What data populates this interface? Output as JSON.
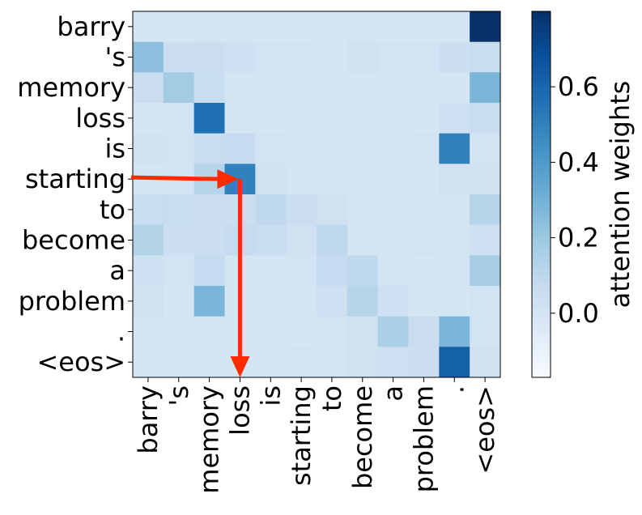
{
  "chart_data": {
    "type": "heatmap",
    "title": "",
    "row_labels": [
      "barry",
      "'s",
      "memory",
      "loss",
      "is",
      "starting",
      "to",
      "become",
      "a",
      "problem",
      ".",
      "<eos>"
    ],
    "col_labels": [
      "barry",
      "'s",
      "memory",
      "loss",
      "is",
      "starting",
      "to",
      "become",
      "a",
      "problem",
      ".",
      "<eos>"
    ],
    "values": [
      [
        0.0,
        0.0,
        0.0,
        0.0,
        0.0,
        0.0,
        0.0,
        0.0,
        0.0,
        0.0,
        0.0,
        0.8
      ],
      [
        0.24,
        0.04,
        0.05,
        0.03,
        0.01,
        0.01,
        0.0,
        0.02,
        0.01,
        0.01,
        0.04,
        0.06
      ],
      [
        0.05,
        0.18,
        0.06,
        0.0,
        0.0,
        0.0,
        0.0,
        0.0,
        0.0,
        0.0,
        0.0,
        0.28
      ],
      [
        0.0,
        0.01,
        0.56,
        0.0,
        0.0,
        0.0,
        0.0,
        0.0,
        0.0,
        0.0,
        0.03,
        0.06
      ],
      [
        0.02,
        0.01,
        0.06,
        0.07,
        0.01,
        0.0,
        0.0,
        0.0,
        0.0,
        0.01,
        0.5,
        0.01
      ],
      [
        0.0,
        0.01,
        0.12,
        0.5,
        0.02,
        0.0,
        0.0,
        0.0,
        0.0,
        0.0,
        0.02,
        0.02
      ],
      [
        0.06,
        0.06,
        0.04,
        0.05,
        0.09,
        0.05,
        0.02,
        0.0,
        0.0,
        0.0,
        0.0,
        0.12
      ],
      [
        0.13,
        0.04,
        0.05,
        0.07,
        0.06,
        0.02,
        0.1,
        0.0,
        0.0,
        0.01,
        0.0,
        0.03
      ],
      [
        0.03,
        0.01,
        0.07,
        0.0,
        0.0,
        0.01,
        0.07,
        0.09,
        0.0,
        0.0,
        0.01,
        0.17
      ],
      [
        0.02,
        0.0,
        0.28,
        0.0,
        0.0,
        0.0,
        0.03,
        0.12,
        0.03,
        0.0,
        0.0,
        0.01
      ],
      [
        0.0,
        0.0,
        0.0,
        0.0,
        0.0,
        0.0,
        0.01,
        0.02,
        0.15,
        0.05,
        0.28,
        0.01
      ],
      [
        0.0,
        0.0,
        0.0,
        0.0,
        0.0,
        0.01,
        0.01,
        0.02,
        0.03,
        0.04,
        0.62,
        0.02
      ]
    ],
    "colormap": "Blues",
    "vmin": -0.17,
    "vmax": 0.8,
    "colorbar": {
      "label": "attention weights",
      "ticks": [
        0.0,
        0.2,
        0.4,
        0.6
      ],
      "tick_labels": [
        "0.0",
        "0.2",
        "0.4",
        "0.6"
      ]
    },
    "grid": false,
    "annotations": [
      {
        "type": "arrow-path",
        "color": "#ff2a00",
        "description": "from row label 'starting' to cell (starting, loss), then down to column label 'loss'",
        "row": "starting",
        "col": "loss"
      }
    ]
  }
}
